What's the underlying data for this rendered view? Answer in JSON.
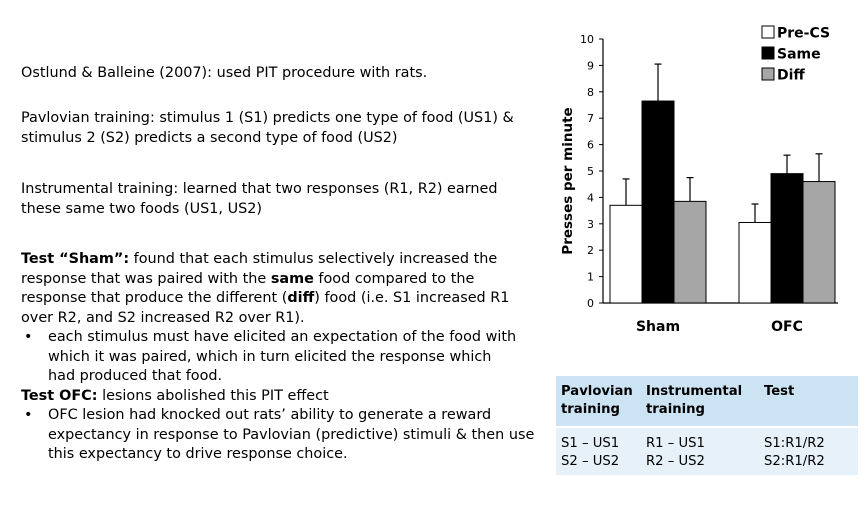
{
  "text": {
    "citation": "Ostlund & Balleine (2007): used PIT procedure with rats.",
    "pavlovian": "Pavlovian training: stimulus 1 (S1) predicts one type of food (US1) & stimulus 2 (S2) predicts a second type of food (US2)",
    "instrumental": "Instrumental training: learned that two responses (R1, R2) earned these same two foods (US1, US2)",
    "sham_label": "Test “Sham”:",
    "sham_part1": " found that each stimulus selectively increased the response that was paired with the ",
    "sham_same": "same",
    "sham_part2": " food compared to the response that produce the different (",
    "sham_diff": "diff",
    "sham_part3": ") food (i.e. S1 increased R1 over R2, and S2 increased R2 over R1).",
    "bullet_1": "each stimulus must have elicited an expectation of the food with which it was paired, which in turn elicited the response which had produced that food.",
    "ofc_label": "Test OFC:",
    "ofc_text": " lesions abolished this PIT effect",
    "bullet_2": "OFC lesion had knocked out rats’ ability to generate a reward expectancy in response to Pavlovian (predictive) stimuli & then use this expectancy to drive response choice.",
    "bullet_char": "•"
  },
  "chart_data": {
    "type": "bar",
    "categories": [
      "Sham",
      "OFC"
    ],
    "series": [
      {
        "name": "Pre-CS",
        "values": [
          3.7,
          3.05
        ],
        "errors": [
          1.0,
          0.7
        ],
        "color": "#ffffff"
      },
      {
        "name": "Same",
        "values": [
          7.65,
          4.9
        ],
        "errors": [
          1.4,
          0.7
        ],
        "color": "#000000"
      },
      {
        "name": "Diff",
        "values": [
          3.85,
          4.6
        ],
        "errors": [
          0.9,
          1.05
        ],
        "color": "#a6a6a6"
      }
    ],
    "ylabel": "Presses per minute",
    "xlabel": "",
    "ylim": [
      0,
      10
    ],
    "yticks": [
      "0",
      "1",
      "2",
      "3",
      "4",
      "5",
      "6",
      "7",
      "8",
      "9",
      "10"
    ],
    "legend_position": "top-right",
    "grid": false
  },
  "table": {
    "headers": [
      "Pavlovian training",
      "Instrumental training",
      "Test"
    ],
    "rows": [
      [
        "S1 – US1",
        "R1 – US1",
        "S1:R1/R2"
      ],
      [
        "S2 – US2",
        "R2 – US2",
        "S2:R1/R2"
      ]
    ],
    "header_bg": "#cbe3f3",
    "row_bg": "#e6f1f9"
  }
}
